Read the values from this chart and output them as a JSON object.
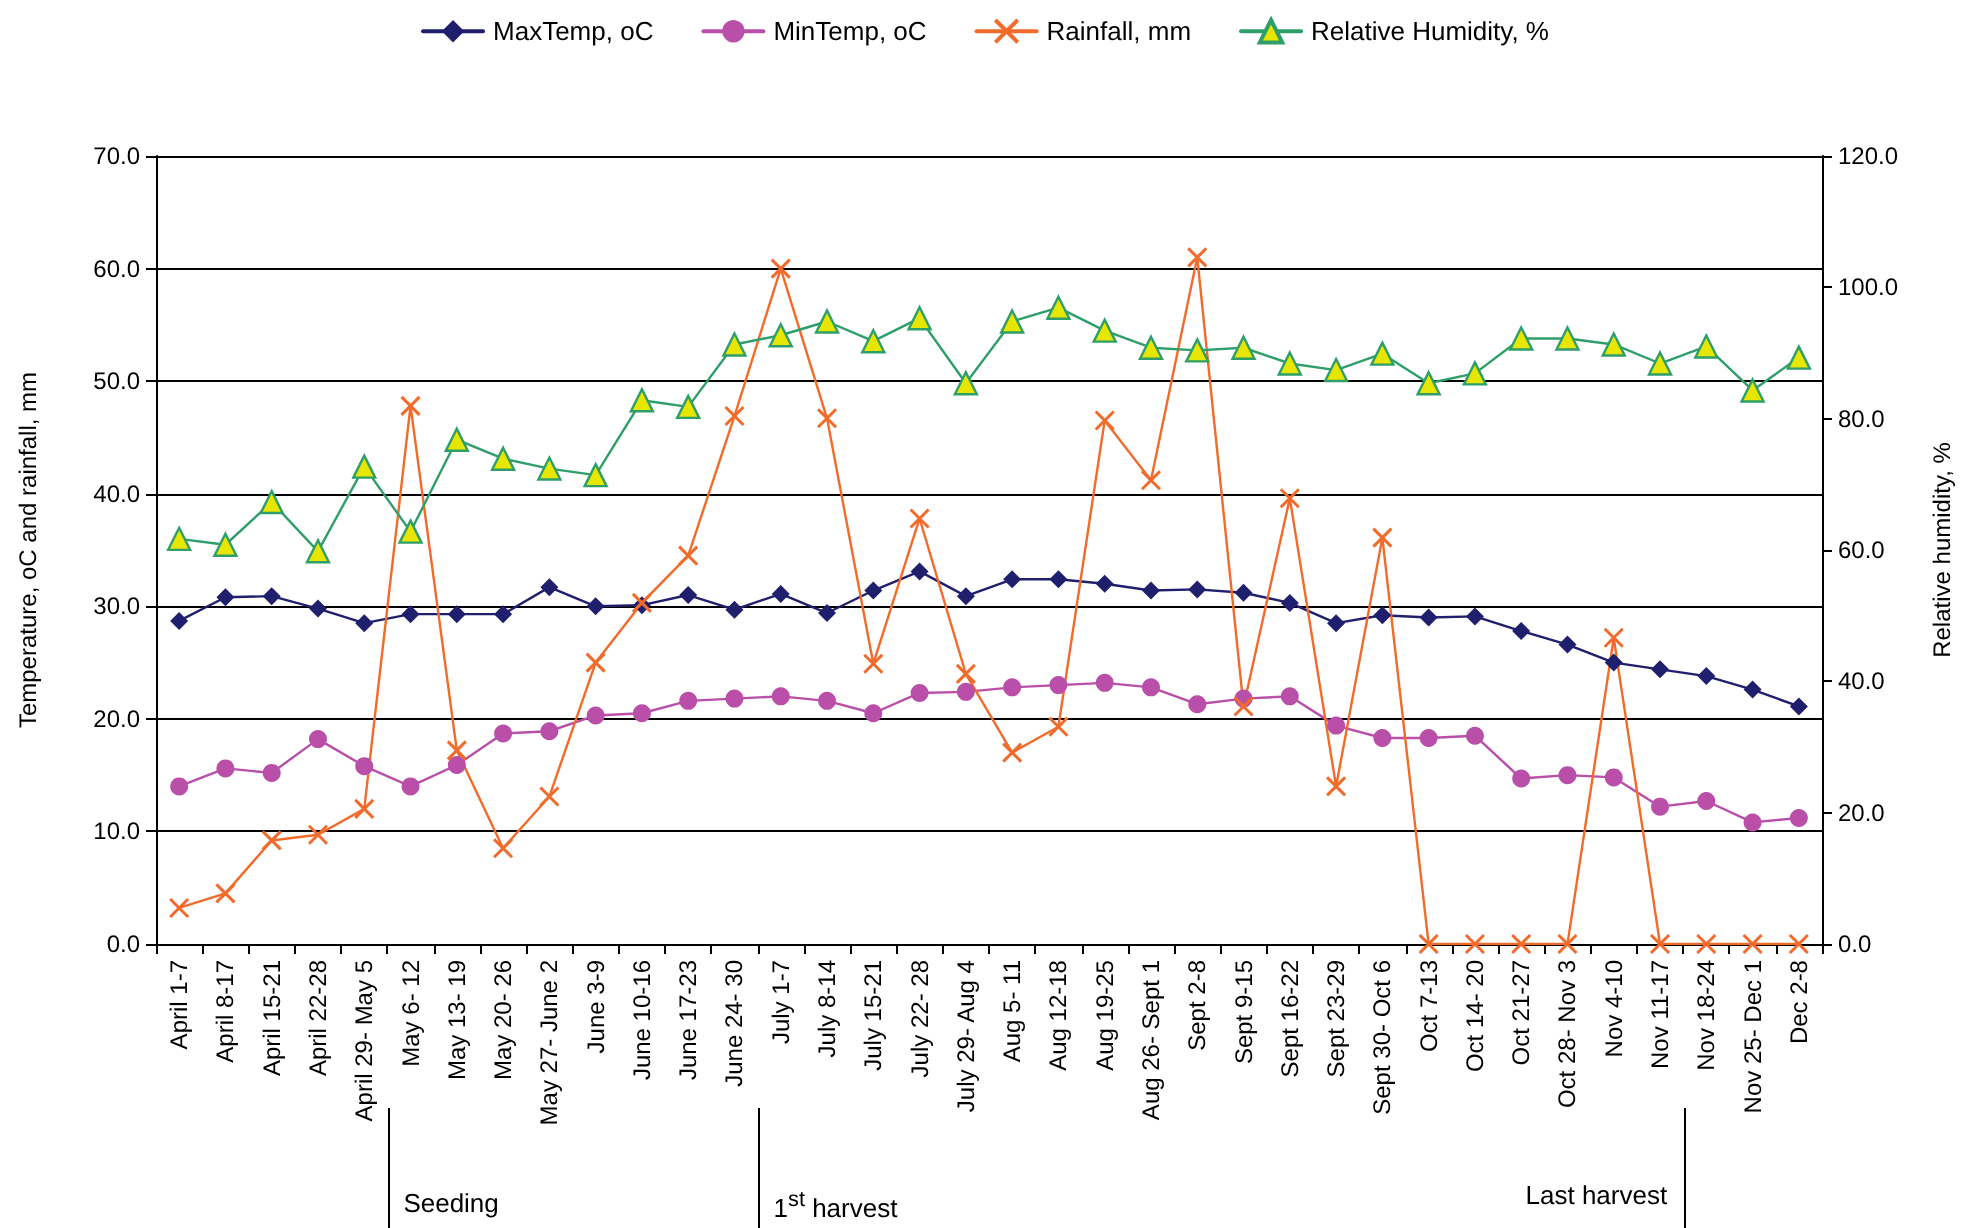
{
  "chart_data": {
    "type": "line",
    "categories": [
      "April 1-7",
      "April 8-17",
      "April 15-21",
      "April 22-28",
      "April 29- May 5",
      "May 6- 12",
      "May 13- 19",
      "May 20- 26",
      "May 27- June 2",
      "June 3-9",
      "June 10-16",
      "June 17-23",
      "June 24- 30",
      "July 1-7",
      "July 8-14",
      "July 15-21",
      "July 22- 28",
      "July 29- Aug 4",
      "Aug 5- 11",
      "Aug 12-18",
      "Aug 19-25",
      "Aug 26- Sept 1",
      "Sept 2-8",
      "Sept 9-15",
      "Sept 16-22",
      "Sept 23-29",
      "Sept 30- Oct 6",
      "Oct 7-13",
      "Oct 14- 20",
      "Oct 21-27",
      "Oct 28- Nov 3",
      "Nov 4-10",
      "Nov 11-17",
      "Nov 18-24",
      "Nov 25- Dec 1",
      "Dec 2-8"
    ],
    "series": [
      {
        "name": "MaxTemp, oC",
        "color": "#1f1f6e",
        "marker": "diamond",
        "values": [
          28.7,
          30.8,
          30.9,
          29.8,
          28.5,
          29.3,
          29.3,
          29.3,
          31.7,
          30.0,
          30.1,
          31.0,
          29.7,
          31.1,
          29.4,
          31.4,
          33.1,
          30.9,
          32.4,
          32.4,
          32.0,
          31.4,
          31.5,
          31.2,
          30.3,
          28.5,
          29.2,
          29.0,
          29.1,
          27.8,
          26.6,
          25.0,
          24.4,
          23.8,
          22.6,
          21.1
        ]
      },
      {
        "name": "MinTemp, oC",
        "color": "#b94fa8",
        "marker": "circle",
        "values": [
          14.0,
          15.6,
          15.2,
          18.2,
          15.8,
          14.0,
          15.9,
          18.7,
          18.9,
          20.3,
          20.5,
          21.6,
          21.8,
          22.0,
          21.6,
          20.5,
          22.3,
          22.4,
          22.8,
          23.0,
          23.2,
          22.8,
          21.3,
          21.8,
          22.0,
          19.4,
          18.3,
          18.3,
          18.5,
          14.7,
          15.0,
          14.8,
          12.2,
          12.7,
          10.8,
          11.2
        ]
      },
      {
        "name": "Rainfall, mm",
        "color": "#f26b2a",
        "marker": "cross",
        "values": [
          3.2,
          4.5,
          9.2,
          9.7,
          12.0,
          47.8,
          17.2,
          8.5,
          13.1,
          25.0,
          30.3,
          34.5,
          46.9,
          60.0,
          46.7,
          24.9,
          37.8,
          24.0,
          17.0,
          19.3,
          46.5,
          41.2,
          61.0,
          21.1,
          39.6,
          14.0,
          36.1,
          0,
          0,
          0,
          0,
          27.2,
          0,
          0,
          0,
          0
        ]
      },
      {
        "name": "Relative Humidity, %",
        "color": "#2e9e6a",
        "marker": "triangle",
        "axis": "y2",
        "values": [
          61.7,
          60.8,
          67.3,
          59.8,
          72.7,
          62.8,
          76.8,
          73.9,
          72.4,
          71.4,
          82.8,
          81.8,
          91.3,
          92.7,
          94.8,
          91.8,
          95.3,
          85.4,
          94.8,
          96.9,
          93.4,
          90.8,
          90.4,
          90.8,
          88.4,
          87.4,
          89.9,
          85.4,
          86.9,
          92.2,
          92.2,
          91.3,
          88.4,
          91.0,
          84.3,
          89.3
        ]
      }
    ],
    "ylabel": "Temperature, oC and rainfall, mm",
    "y2label": "Relative humidity, %",
    "ylim": [
      0,
      70
    ],
    "yticks": [
      {
        "value": 0,
        "label": "0.0"
      },
      {
        "value": 10,
        "label": "10.0"
      },
      {
        "value": 20,
        "label": "20.0"
      },
      {
        "value": 30,
        "label": "30.0"
      },
      {
        "value": 40,
        "label": "40.0"
      },
      {
        "value": 50,
        "label": "50.0"
      },
      {
        "value": 60,
        "label": "60.0"
      },
      {
        "value": 70,
        "label": "70.0"
      }
    ],
    "y2lim": [
      0,
      120
    ],
    "y2ticks": [
      {
        "value": 0,
        "label": "0.0"
      },
      {
        "value": 20,
        "label": "20.0"
      },
      {
        "value": 40,
        "label": "40.0"
      },
      {
        "value": 60,
        "label": "60.0"
      },
      {
        "value": 80,
        "label": "80.0"
      },
      {
        "value": 100,
        "label": "100.0"
      },
      {
        "value": 120,
        "label": "120.0"
      }
    ],
    "annotations": [
      "Seeding",
      "1$^{st}$ harvest",
      "Last harvest"
    ],
    "grid": "y",
    "legend": "top",
    "line_style": "solid"
  }
}
